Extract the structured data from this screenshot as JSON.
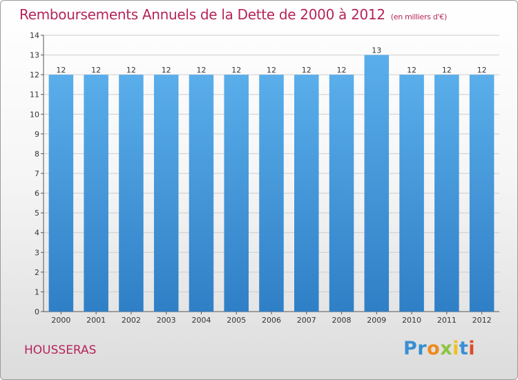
{
  "title": "Remboursements Annuels de la Dette de 2000 à 2012",
  "subtitle": "(en milliers d'€)",
  "commune": "HOUSSERAS",
  "logo": {
    "letters": [
      "P",
      "r",
      "o",
      "x",
      "i",
      "t",
      "i"
    ],
    "colors": [
      "#3a8fd4",
      "#2f8fd0",
      "#f08a1e",
      "#8cc43c",
      "#f0c020",
      "#3a8fd4",
      "#e04a2a"
    ]
  },
  "colors": {
    "bar_top": "#5aaeea",
    "bar_bottom": "#2f7fc6",
    "grid": "#cccccc",
    "title": "#b5245a"
  },
  "chart_data": {
    "type": "bar",
    "title": "Remboursements Annuels de la Dette de 2000 à 2012",
    "subtitle": "(en milliers d'€)",
    "categories": [
      "2000",
      "2001",
      "2002",
      "2003",
      "2004",
      "2005",
      "2006",
      "2007",
      "2008",
      "2009",
      "2010",
      "2011",
      "2012"
    ],
    "values": [
      12,
      12,
      12,
      12,
      12,
      12,
      12,
      12,
      12,
      13,
      12,
      12,
      12
    ],
    "data_labels": [
      "12",
      "12",
      "12",
      "12",
      "12",
      "12",
      "12",
      "12",
      "12",
      "13",
      "12",
      "12",
      "12"
    ],
    "ylim": [
      0,
      14
    ],
    "yticks": [
      "0",
      "1",
      "2",
      "3",
      "4",
      "5",
      "6",
      "7",
      "8",
      "9",
      "10",
      "11",
      "12",
      "13",
      "14"
    ],
    "grid": true,
    "legend": "none"
  }
}
